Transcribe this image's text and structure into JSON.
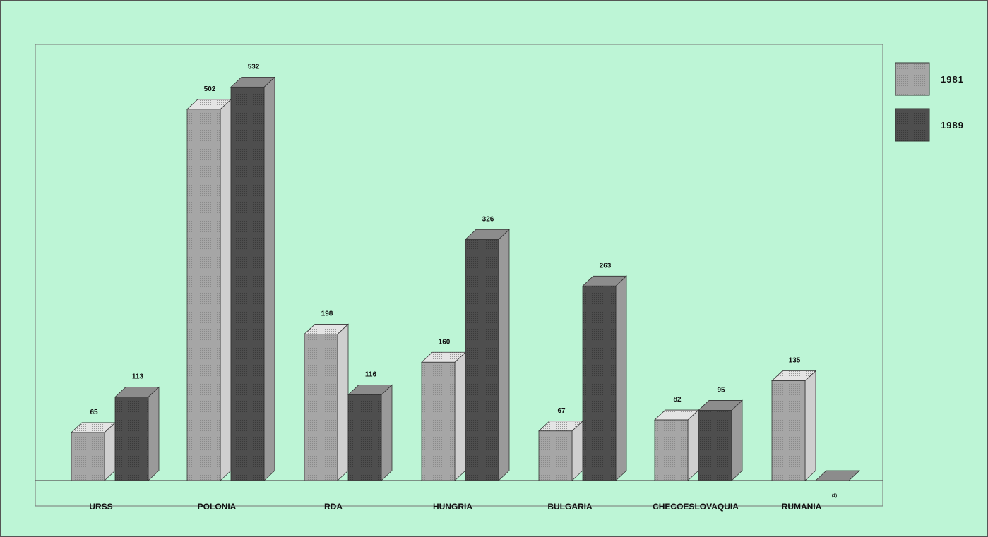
{
  "chart_data": {
    "type": "bar",
    "categories": [
      "URSS",
      "POLONIA",
      "RDA",
      "HUNGRIA",
      "BULGARIA",
      "CHECOESLOVAQUIA",
      "RUMANIA"
    ],
    "series": [
      {
        "name": "1981",
        "values": [
          65,
          502,
          198,
          160,
          67,
          82,
          135
        ],
        "value_labels": [
          "65",
          "502",
          "198",
          "160",
          "67",
          "82",
          "135"
        ]
      },
      {
        "name": "1989",
        "values": [
          113,
          532,
          116,
          326,
          263,
          95,
          0
        ],
        "value_labels": [
          "113",
          "532",
          "116",
          "326",
          "263",
          "95",
          ""
        ]
      }
    ],
    "ylim": [
      0,
      560
    ],
    "grid": false,
    "legend_position": "top-right",
    "annotations": [
      {
        "category": "RUMANIA",
        "series": "1989",
        "text": "(1)"
      }
    ],
    "colors": {
      "1981": {
        "front": "#a6a6a6",
        "side": "#cfcfcf",
        "top": "#e8e8e8",
        "stipple": "#8f8f8f"
      },
      "1989": {
        "front": "#4e4e4e",
        "side": "#9a9a9a",
        "top": "#8c8c8c",
        "stipple": "#3a3a3a"
      },
      "background": "#bdf5d6",
      "outline": "#333333"
    }
  }
}
